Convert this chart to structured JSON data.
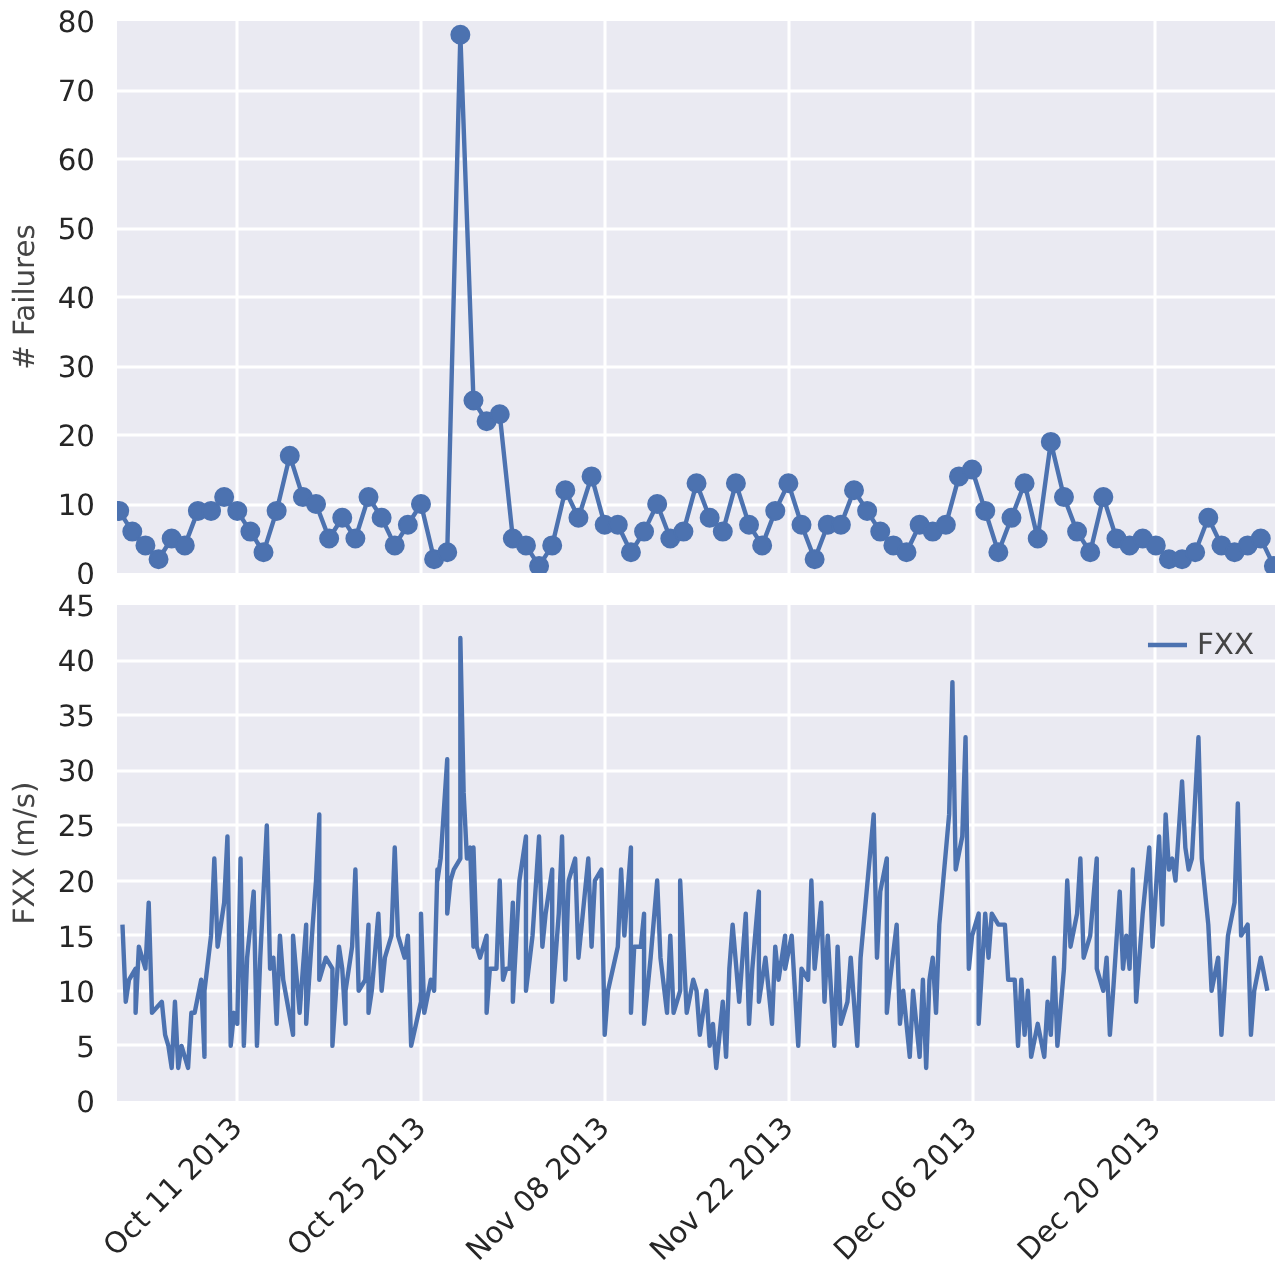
{
  "chart_data": [
    {
      "type": "line",
      "ylabel": "# Failures",
      "marker": "circle",
      "grid": true,
      "tick_labels": "y",
      "legend": false,
      "xlim": [
        "2013-10-01T20:00",
        "2013-12-29T02:00"
      ],
      "ylim": [
        0,
        80
      ],
      "yticks": [
        0,
        10,
        20,
        30,
        40,
        50,
        60,
        70,
        80
      ],
      "xticks": [
        {
          "value": "2013-10-11",
          "label": null
        },
        {
          "value": "2013-10-25",
          "label": null
        },
        {
          "value": "2013-11-08",
          "label": null
        },
        {
          "value": "2013-11-22",
          "label": null
        },
        {
          "value": "2013-12-06",
          "label": null
        },
        {
          "value": "2013-12-20",
          "label": null
        }
      ],
      "x": [
        "2013-10-02",
        "2013-10-03",
        "2013-10-04",
        "2013-10-05",
        "2013-10-06",
        "2013-10-07",
        "2013-10-08",
        "2013-10-09",
        "2013-10-10",
        "2013-10-11",
        "2013-10-12",
        "2013-10-13",
        "2013-10-14",
        "2013-10-15",
        "2013-10-16",
        "2013-10-17",
        "2013-10-18",
        "2013-10-19",
        "2013-10-20",
        "2013-10-21",
        "2013-10-22",
        "2013-10-23",
        "2013-10-24",
        "2013-10-25",
        "2013-10-26",
        "2013-10-27",
        "2013-10-28",
        "2013-10-29",
        "2013-10-30",
        "2013-10-31",
        "2013-11-01",
        "2013-11-02",
        "2013-11-03",
        "2013-11-04",
        "2013-11-05",
        "2013-11-06",
        "2013-11-07",
        "2013-11-08",
        "2013-11-09",
        "2013-11-10",
        "2013-11-11",
        "2013-11-12",
        "2013-11-13",
        "2013-11-14",
        "2013-11-15",
        "2013-11-16",
        "2013-11-17",
        "2013-11-18",
        "2013-11-19",
        "2013-11-20",
        "2013-11-21",
        "2013-11-22",
        "2013-11-23",
        "2013-11-24",
        "2013-11-25",
        "2013-11-26",
        "2013-11-27",
        "2013-11-28",
        "2013-11-29",
        "2013-11-30",
        "2013-12-01",
        "2013-12-02",
        "2013-12-03",
        "2013-12-04",
        "2013-12-05",
        "2013-12-06",
        "2013-12-07",
        "2013-12-08",
        "2013-12-09",
        "2013-12-10",
        "2013-12-11",
        "2013-12-12",
        "2013-12-13",
        "2013-12-14",
        "2013-12-15",
        "2013-12-16",
        "2013-12-17",
        "2013-12-18",
        "2013-12-19",
        "2013-12-20",
        "2013-12-21",
        "2013-12-22",
        "2013-12-23",
        "2013-12-24",
        "2013-12-25",
        "2013-12-26",
        "2013-12-27",
        "2013-12-28",
        "2013-12-29"
      ],
      "series": [
        {
          "color": "#4c72b0",
          "values": [
            9,
            6,
            4,
            2,
            5,
            4,
            9,
            9,
            11,
            9,
            6,
            3,
            9,
            17,
            11,
            10,
            5,
            8,
            5,
            11,
            8,
            4,
            7,
            10,
            2,
            3,
            78,
            25,
            22,
            23,
            5,
            4,
            1,
            4,
            12,
            8,
            14,
            7,
            7,
            3,
            6,
            10,
            5,
            6,
            13,
            8,
            6,
            13,
            7,
            4,
            9,
            13,
            7,
            2,
            7,
            7,
            12,
            9,
            6,
            4,
            3,
            7,
            6,
            7,
            14,
            15,
            9,
            3,
            8,
            13,
            5,
            19,
            11,
            6,
            3,
            11,
            5,
            4,
            5,
            4,
            2,
            2,
            3,
            8,
            4,
            3,
            4,
            5,
            1
          ]
        }
      ]
    },
    {
      "type": "line",
      "ylabel": "FXX (m/s)",
      "marker": "none",
      "grid": true,
      "legend": "top right",
      "xlim": [
        "2013-10-01T20:00",
        "2013-12-29T02:00"
      ],
      "ylim": [
        0,
        45
      ],
      "yticks": [
        0,
        5,
        10,
        15,
        20,
        25,
        30,
        35,
        40,
        45
      ],
      "xticks": [
        {
          "value": "2013-10-11",
          "label": "Oct 11 2013"
        },
        {
          "value": "2013-10-25",
          "label": "Oct 25 2013"
        },
        {
          "value": "2013-11-08",
          "label": "Nov 08 2013"
        },
        {
          "value": "2013-11-22",
          "label": "Nov 22 2013"
        },
        {
          "value": "2013-12-06",
          "label": "Dec 06 2013"
        },
        {
          "value": "2013-12-20",
          "label": "Dec 20 2013"
        }
      ],
      "series": [
        {
          "name": "FXX",
          "color": "#4c72b0",
          "x": [
            "2013-10-02T06:00",
            "2013-10-02T12:00",
            "2013-10-02T18:00",
            "2013-10-03T06:00",
            "2013-10-03T06:00",
            "2013-10-03T12:00",
            "2013-10-04T00:00",
            "2013-10-04T06:00",
            "2013-10-04T12:00",
            "2013-10-05T06:00",
            "2013-10-05T12:00",
            "2013-10-05T18:00",
            "2013-10-06T00:00",
            "2013-10-06T06:00",
            "2013-10-06T12:00",
            "2013-10-06T18:00",
            "2013-10-07T06:00",
            "2013-10-07T12:00",
            "2013-10-07T18:00",
            "2013-10-08T06:00",
            "2013-10-08T12:00",
            "2013-10-08T12:00",
            "2013-10-09T00:00",
            "2013-10-09T06:00",
            "2013-10-09T12:00",
            "2013-10-10T00:00",
            "2013-10-10T06:00",
            "2013-10-10T12:00",
            "2013-10-10T18:00",
            "2013-10-11T00:00",
            "2013-10-11T06:00",
            "2013-10-11T12:00",
            "2013-10-11T18:00",
            "2013-10-12T06:00",
            "2013-10-12T12:00",
            "2013-10-12T18:00",
            "2013-10-13T06:00",
            "2013-10-13T12:00",
            "2013-10-13T18:00",
            "2013-10-14T00:00",
            "2013-10-14T06:00",
            "2013-10-14T12:00",
            "2013-10-15T06:00",
            "2013-10-15T06:00",
            "2013-10-15T18:00",
            "2013-10-16T06:00",
            "2013-10-16T06:00",
            "2013-10-16T18:00",
            "2013-10-17T00:00",
            "2013-10-17T06:00",
            "2013-10-17T06:00",
            "2013-10-17T18:00",
            "2013-10-18T06:00",
            "2013-10-18T06:00",
            "2013-10-18T18:00",
            "2013-10-19T00:00",
            "2013-10-19T06:00",
            "2013-10-19T06:00",
            "2013-10-19T12:00",
            "2013-10-19T18:00",
            "2013-10-20T00:00",
            "2013-10-20T06:00",
            "2013-10-20T18:00",
            "2013-10-21T00:00",
            "2013-10-21T00:00",
            "2013-10-21T06:00",
            "2013-10-21T18:00",
            "2013-10-22T00:00",
            "2013-10-22T06:00",
            "2013-10-22T18:00",
            "2013-10-23T00:00",
            "2013-10-23T06:00",
            "2013-10-23T18:00",
            "2013-10-24T00:00",
            "2013-10-24T06:00",
            "2013-10-25T00:00",
            "2013-10-25T00:00",
            "2013-10-25T06:00",
            "2013-10-25T18:00",
            "2013-10-26T00:00",
            "2013-10-26T06:00",
            "2013-10-26T06:00",
            "2013-10-26T12:00",
            "2013-10-27T00:00",
            "2013-10-27T00:00",
            "2013-10-27T06:00",
            "2013-10-27T12:00",
            "2013-10-28T00:00",
            "2013-10-28T00:00",
            "2013-10-28T06:00",
            "2013-10-28T12:00",
            "2013-10-28T18:00",
            "2013-10-29T00:00",
            "2013-10-29T00:00",
            "2013-10-29T06:00",
            "2013-10-29T12:00",
            "2013-10-30T00:00",
            "2013-10-30T00:00",
            "2013-10-30T06:00",
            "2013-10-30T18:00",
            "2013-10-31T00:00",
            "2013-10-31T06:00",
            "2013-10-31T12:00",
            "2013-10-31T18:00",
            "2013-11-01T00:00",
            "2013-11-01T00:00",
            "2013-11-01T12:00",
            "2013-11-02T00:00",
            "2013-11-02T00:00",
            "2013-11-02T12:00",
            "2013-11-03T00:00",
            "2013-11-03T06:00",
            "2013-11-03T12:00",
            "2013-11-04T00:00",
            "2013-11-04T00:00",
            "2013-11-04T12:00",
            "2013-11-04T18:00",
            "2013-11-05T00:00",
            "2013-11-05T06:00",
            "2013-11-05T18:00",
            "2013-11-06T00:00",
            "2013-11-06T06:00",
            "2013-11-06T18:00",
            "2013-11-07T00:00",
            "2013-11-07T06:00",
            "2013-11-07T18:00",
            "2013-11-08T00:00",
            "2013-11-08T06:00",
            "2013-11-09T00:00",
            "2013-11-09T06:00",
            "2013-11-09T12:00",
            "2013-11-10T00:00",
            "2013-11-10T00:00",
            "2013-11-10T06:00",
            "2013-11-10T18:00",
            "2013-11-11T00:00",
            "2013-11-11T00:00",
            "2013-11-11T12:00",
            "2013-11-12T00:00",
            "2013-11-12T06:00",
            "2013-11-12T18:00",
            "2013-11-13T00:00",
            "2013-11-13T06:00",
            "2013-11-13T18:00",
            "2013-11-13T18:00",
            "2013-11-14T06:00",
            "2013-11-14T18:00",
            "2013-11-15T00:00",
            "2013-11-15T06:00",
            "2013-11-15T18:00",
            "2013-11-16T00:00",
            "2013-11-16T06:00",
            "2013-11-16T12:00",
            "2013-11-17T00:00",
            "2013-11-17T06:00",
            "2013-11-17T12:00",
            "2013-11-17T18:00",
            "2013-11-18T06:00",
            "2013-11-18T18:00",
            "2013-11-19T00:00",
            "2013-11-19T06:00",
            "2013-11-19T18:00",
            "2013-11-19T18:00",
            "2013-11-20T06:00",
            "2013-11-20T18:00",
            "2013-11-21T00:00",
            "2013-11-21T06:00",
            "2013-11-21T18:00",
            "2013-11-21T18:00",
            "2013-11-22T06:00",
            "2013-11-22T18:00",
            "2013-11-23T00:00",
            "2013-11-23T12:00",
            "2013-11-23T18:00",
            "2013-11-24T00:00",
            "2013-11-24T12:00",
            "2013-11-24T18:00",
            "2013-11-25T00:00",
            "2013-11-25T12:00",
            "2013-11-25T18:00",
            "2013-11-26T00:00",
            "2013-11-26T12:00",
            "2013-11-26T18:00",
            "2013-11-27T06:00",
            "2013-11-27T12:00",
            "2013-11-28T12:00",
            "2013-11-28T18:00",
            "2013-11-29T00:00",
            "2013-11-29T12:00",
            "2013-11-29T12:00",
            "2013-11-29T18:00",
            "2013-11-30T06:00",
            "2013-11-30T12:00",
            "2013-11-30T18:00",
            "2013-12-01T06:00",
            "2013-12-01T12:00",
            "2013-12-02T00:00",
            "2013-12-02T06:00",
            "2013-12-02T12:00",
            "2013-12-02T18:00",
            "2013-12-03T00:00",
            "2013-12-03T06:00",
            "2013-12-03T12:00",
            "2013-12-04T06:00",
            "2013-12-04T12:00",
            "2013-12-04T18:00",
            "2013-12-05T06:00",
            "2013-12-05T12:00",
            "2013-12-05T18:00",
            "2013-12-06T00:00",
            "2013-12-06T12:00",
            "2013-12-06T12:00",
            "2013-12-07T00:00",
            "2013-12-07T06:00",
            "2013-12-07T12:00",
            "2013-12-08T00:00",
            "2013-12-08T12:00",
            "2013-12-08T18:00",
            "2013-12-09T06:00",
            "2013-12-09T12:00",
            "2013-12-09T18:00",
            "2013-12-10T00:00",
            "2013-12-10T06:00",
            "2013-12-10T12:00",
            "2013-12-11T00:00",
            "2013-12-11T12:00",
            "2013-12-11T18:00",
            "2013-12-12T00:00",
            "2013-12-12T06:00",
            "2013-12-12T12:00",
            "2013-12-13T00:00",
            "2013-12-13T06:00",
            "2013-12-13T12:00",
            "2013-12-14T00:00",
            "2013-12-14T06:00",
            "2013-12-14T12:00",
            "2013-12-15T00:00",
            "2013-12-15T12:00",
            "2013-12-15T12:00",
            "2013-12-16T00:00",
            "2013-12-16T06:00",
            "2013-12-16T12:00",
            "2013-12-16T18:00",
            "2013-12-17T06:00",
            "2013-12-17T12:00",
            "2013-12-17T18:00",
            "2013-12-18T00:00",
            "2013-12-18T06:00",
            "2013-12-18T12:00",
            "2013-12-19T00:00",
            "2013-12-19T12:00",
            "2013-12-19T18:00",
            "2013-12-20T06:00",
            "2013-12-20T12:00",
            "2013-12-20T18:00",
            "2013-12-21T00:00",
            "2013-12-21T06:00",
            "2013-12-21T12:00",
            "2013-12-22T00:00",
            "2013-12-22T06:00",
            "2013-12-22T12:00",
            "2013-12-22T18:00",
            "2013-12-23T06:00",
            "2013-12-23T12:00",
            "2013-12-24T00:00",
            "2013-12-24T06:00",
            "2013-12-24T18:00",
            "2013-12-25T00:00",
            "2013-12-25T12:00",
            "2013-12-26T00:00",
            "2013-12-26T06:00",
            "2013-12-26T12:00",
            "2013-12-27T00:00",
            "2013-12-27T06:00",
            "2013-12-27T12:00",
            "2013-12-28T00:00",
            "2013-12-28T12:00"
          ],
          "values": [
            16,
            9,
            11,
            12,
            8,
            14,
            12,
            18,
            8,
            9,
            6,
            5,
            3,
            9,
            3,
            5,
            3,
            8,
            8,
            11,
            4,
            10,
            15,
            22,
            14,
            18,
            24,
            5,
            8,
            7,
            22,
            5,
            13,
            19,
            5,
            13,
            25,
            12,
            13,
            7,
            15,
            11,
            6,
            15,
            8,
            16,
            7,
            16,
            20,
            26,
            11,
            13,
            12,
            5,
            14,
            12,
            7,
            10,
            12,
            14,
            21,
            10,
            11,
            16,
            8,
            10,
            17,
            10,
            13,
            15,
            23,
            15,
            13,
            15,
            5,
            9,
            17,
            8,
            11,
            10,
            21,
            20,
            22,
            31,
            17,
            20,
            21,
            22,
            42,
            28,
            22,
            23,
            14,
            23,
            14,
            13,
            15,
            8,
            12,
            12,
            20,
            11,
            12,
            12,
            18,
            9,
            20,
            24,
            10,
            15,
            24,
            14,
            17,
            21,
            9,
            17,
            24,
            11,
            20,
            22,
            13,
            16,
            22,
            14,
            20,
            21,
            6,
            10,
            14,
            21,
            15,
            23,
            8,
            14,
            14,
            17,
            7,
            13,
            20,
            13,
            8,
            15,
            8,
            10,
            20,
            8,
            11,
            10,
            6,
            10,
            5,
            7,
            3,
            9,
            4,
            12,
            16,
            9,
            17,
            7,
            12,
            19,
            9,
            13,
            7,
            14,
            11,
            15,
            12,
            15,
            5,
            12,
            11,
            20,
            12,
            18,
            9,
            15,
            5,
            14,
            7,
            9,
            13,
            5,
            13,
            26,
            13,
            19,
            22,
            8,
            11,
            16,
            7,
            10,
            4,
            10,
            4,
            11,
            3,
            11,
            13,
            8,
            16,
            26,
            38,
            21,
            24,
            33,
            12,
            15,
            17,
            7,
            17,
            13,
            17,
            16,
            16,
            11,
            11,
            5,
            11,
            6,
            10,
            4,
            7,
            4,
            9,
            6,
            13,
            5,
            12,
            20,
            14,
            17,
            22,
            13,
            15,
            22,
            12,
            10,
            13,
            6,
            10,
            19,
            12,
            15,
            12,
            21,
            9,
            17,
            23,
            14,
            24,
            16,
            26,
            21,
            22,
            20,
            29,
            23,
            21,
            22,
            33,
            22,
            16,
            10,
            13,
            6,
            15,
            18,
            27,
            15,
            16,
            6,
            10,
            13,
            10
          ]
        }
      ]
    }
  ]
}
